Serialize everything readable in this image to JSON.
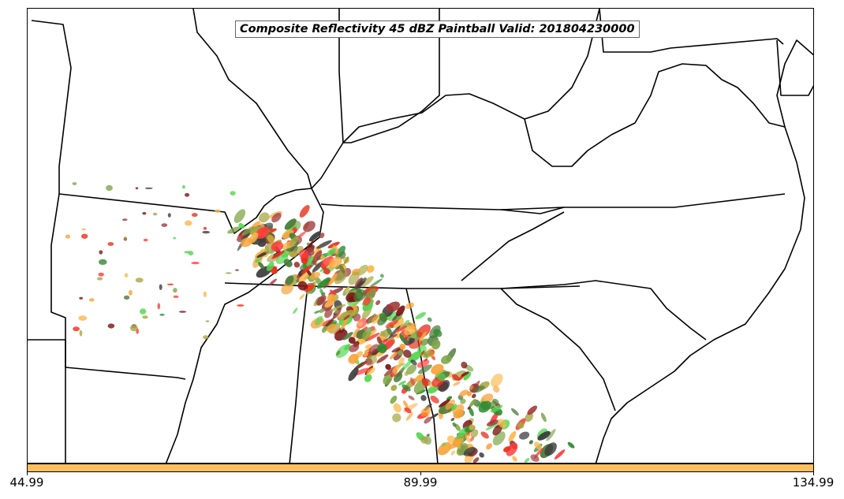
{
  "map": {
    "title": "Composite Reflectivity 45 dBZ Paintball Valid: 201804230000",
    "colorbar": {
      "color": "#fcc060",
      "ticks": [
        {
          "label": "44.99",
          "value": 44.99
        },
        {
          "label": "89.99",
          "value": 89.99
        },
        {
          "label": "134.99",
          "value": 134.99
        }
      ],
      "range": [
        44.99,
        134.99
      ]
    },
    "paintball_colors": [
      "#f9a33a",
      "#fbb84a",
      "#e8301c",
      "#ff3b3b",
      "#a03a3a",
      "#7a1414",
      "#3c3c3c",
      "#2e8b2e",
      "#52d64f",
      "#7ea648",
      "#a6a642",
      "#4a7a3a"
    ]
  }
}
